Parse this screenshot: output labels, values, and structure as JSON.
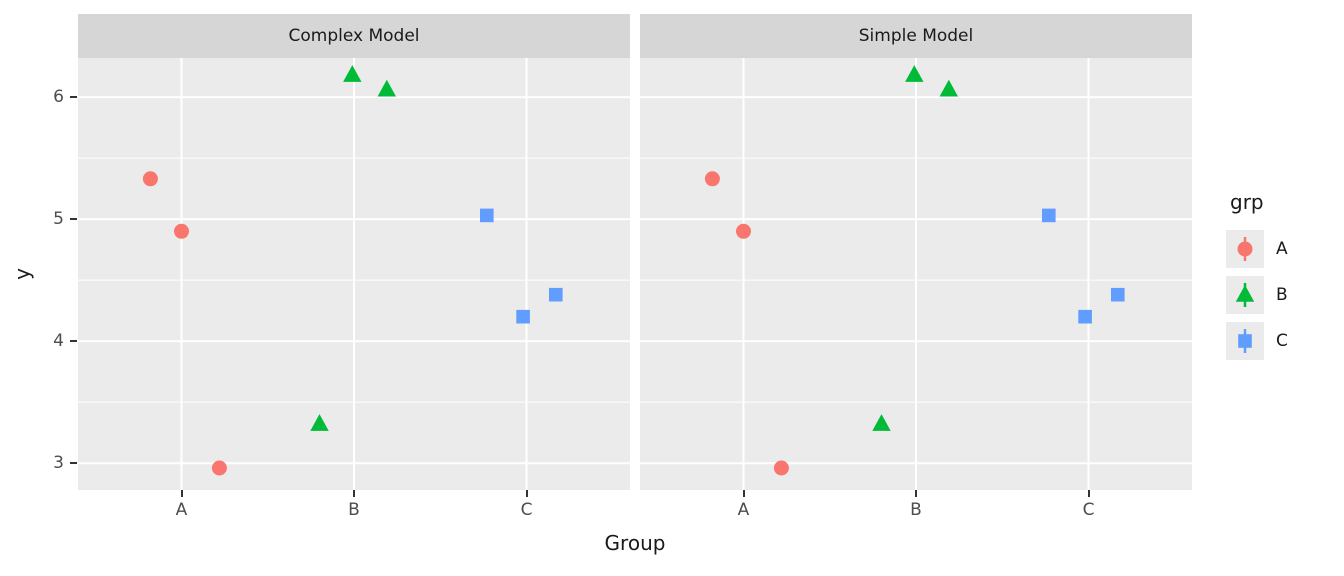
{
  "chart_data": {
    "type": "scatter",
    "xlabel": "Group",
    "ylabel": "y",
    "facets": [
      {
        "title": "Complex Model"
      },
      {
        "title": "Simple Model"
      }
    ],
    "facets_share_series": true,
    "x_categories": [
      "A",
      "B",
      "C"
    ],
    "xlim": [
      0.4,
      3.6
    ],
    "y_ticks": [
      3,
      4,
      5,
      6
    ],
    "ylim": [
      2.78,
      6.32
    ],
    "grid": {
      "minor_y": [
        3.5,
        4.5,
        5.5
      ],
      "show_major": true
    },
    "legend": {
      "title": "grp",
      "position": "right",
      "items": [
        {
          "label": "A",
          "shape": "circle",
          "color": "#F8766D"
        },
        {
          "label": "B",
          "shape": "triangle",
          "color": "#00BA38"
        },
        {
          "label": "C",
          "shape": "square",
          "color": "#619CFF"
        }
      ]
    },
    "series": [
      {
        "name": "A",
        "shape": "circle",
        "color": "#F8766D",
        "points": [
          {
            "x": 0.82,
            "y": 5.33
          },
          {
            "x": 1.0,
            "y": 4.9
          },
          {
            "x": 1.22,
            "y": 2.96
          }
        ]
      },
      {
        "name": "B",
        "shape": "triangle",
        "color": "#00BA38",
        "points": [
          {
            "x": 1.99,
            "y": 6.18
          },
          {
            "x": 2.19,
            "y": 6.06
          },
          {
            "x": 1.8,
            "y": 3.32
          }
        ]
      },
      {
        "name": "C",
        "shape": "square",
        "color": "#619CFF",
        "points": [
          {
            "x": 2.77,
            "y": 5.03
          },
          {
            "x": 2.98,
            "y": 4.2
          },
          {
            "x": 3.17,
            "y": 4.38
          }
        ]
      }
    ],
    "style": {
      "panel_bg": "#EBEBEB",
      "strip_bg": "#D6D6D6",
      "grid_color": "#FFFFFF",
      "tick_color": "#333333",
      "tick_label_color": "#4D4D4D",
      "text_color": "#1A1A1A",
      "legend_key_bg": "#EBEBEB"
    }
  }
}
